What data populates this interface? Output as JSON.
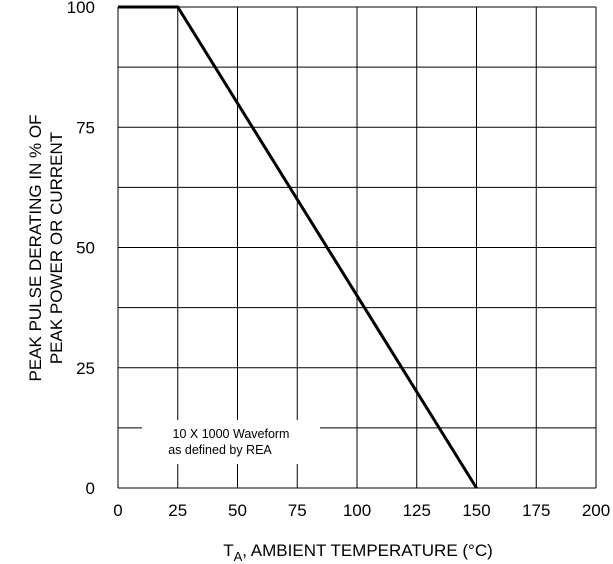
{
  "chart_data": {
    "type": "line",
    "x_ticks": [
      "0",
      "25",
      "50",
      "75",
      "100",
      "125",
      "150",
      "175",
      "200"
    ],
    "y_ticks": [
      "0",
      "25",
      "50",
      "75",
      "100"
    ],
    "xlim": [
      0,
      200
    ],
    "ylim": [
      0,
      100
    ],
    "grid": true,
    "xlabel": {
      "main": "T",
      "subscript": "A",
      "rest": ", AMBIENT TEMPERATURE (°C)"
    },
    "ylabel_lines": [
      "PEAK PULSE DERATING IN % OF",
      "PEAK POWER OR CURRENT"
    ],
    "annotation_lines": [
      "10 X 1000 Waveform",
      "as defined by REA"
    ],
    "series": [
      {
        "x": [
          0,
          25,
          150
        ],
        "y": [
          100,
          100,
          0
        ],
        "color": "#000000"
      }
    ]
  }
}
